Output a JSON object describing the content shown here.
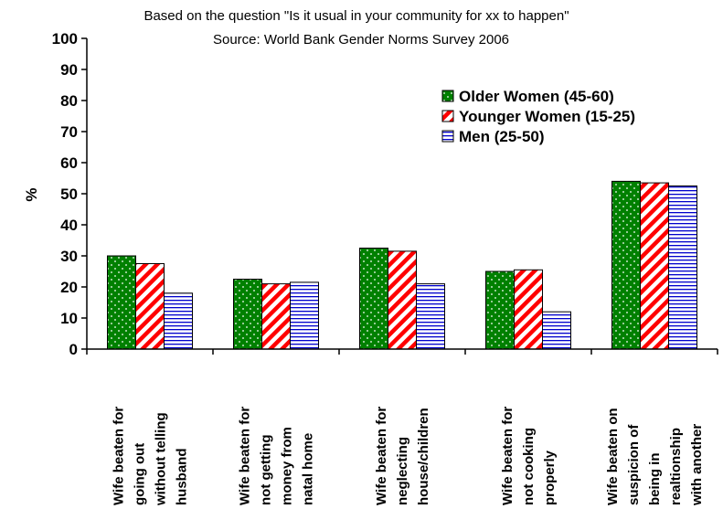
{
  "chart_data": {
    "type": "bar",
    "subtitle_lines": [
      "Based on the question \"Is it usual in your community for xx to happen\"",
      "Source:  World Bank Gender Norms Survey 2006"
    ],
    "ylabel": "%",
    "ylim": [
      0,
      100
    ],
    "yticks": [
      "0",
      "10",
      "20",
      "30",
      "40",
      "50",
      "60",
      "70",
      "80",
      "90",
      "100"
    ],
    "categories": [
      [
        "Wife beaten for",
        "going out",
        "without telling",
        "husband"
      ],
      [
        "Wife beaten for",
        "not getting",
        "money from",
        "natal home"
      ],
      [
        "Wife beaten for",
        "neglecting",
        "house/children"
      ],
      [
        "Wife beaten for",
        "not cooking",
        "properly"
      ],
      [
        "Wife beaten on",
        "suspicion of",
        "being in",
        "realtionship",
        "with another"
      ]
    ],
    "series": [
      {
        "name": "Older Women (45-60)",
        "values": [
          30,
          22.5,
          32.5,
          25,
          54
        ],
        "color": "#008000",
        "pattern": "dots"
      },
      {
        "name": "Younger Women (15-25)",
        "values": [
          27.5,
          21,
          31.5,
          25.5,
          53.5
        ],
        "color": "#ff0000",
        "pattern": "diagonal-stripes"
      },
      {
        "name": "Men (25-50)",
        "values": [
          18,
          21.5,
          21,
          12,
          52.5
        ],
        "color": "#0000cc",
        "pattern": "horizontal-lines"
      }
    ],
    "legend_position": "right",
    "grid": false
  }
}
